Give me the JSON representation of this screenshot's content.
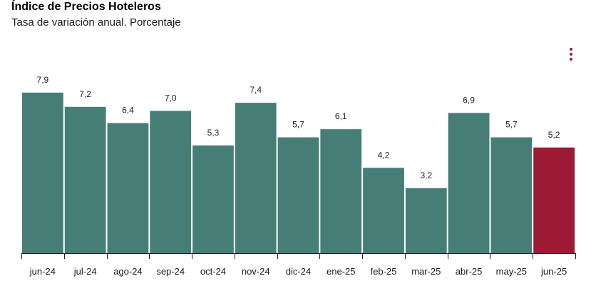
{
  "header": {
    "title": "Índice de Precios Hoteleros",
    "subtitle": "Tasa de variación anual. Porcentaje"
  },
  "menu": {
    "icon": "vertical-dots-icon"
  },
  "colors": {
    "bar": "#467e77",
    "highlight": "#9c1a33",
    "axis": "#222222"
  },
  "chart_data": {
    "type": "bar",
    "title": "Índice de Precios Hoteleros",
    "subtitle": "Tasa de variación anual. Porcentaje",
    "categories": [
      "jun-24",
      "jul-24",
      "ago-24",
      "sep-24",
      "oct-24",
      "nov-24",
      "dic-24",
      "ene-25",
      "feb-25",
      "mar-25",
      "abr-25",
      "may-25",
      "jun-25"
    ],
    "values": [
      7.9,
      7.2,
      6.4,
      7.0,
      5.3,
      7.4,
      5.7,
      6.1,
      4.2,
      3.2,
      6.9,
      5.7,
      5.2
    ],
    "value_labels": [
      "7,9",
      "7,2",
      "6,4",
      "7,0",
      "5,3",
      "7,4",
      "5,7",
      "6,1",
      "4,2",
      "3,2",
      "6,9",
      "5,7",
      "5,2"
    ],
    "highlight_index": 12,
    "xlabel": "",
    "ylabel": "",
    "ylim": [
      0,
      7.9
    ],
    "grid": false,
    "legend": "none"
  }
}
